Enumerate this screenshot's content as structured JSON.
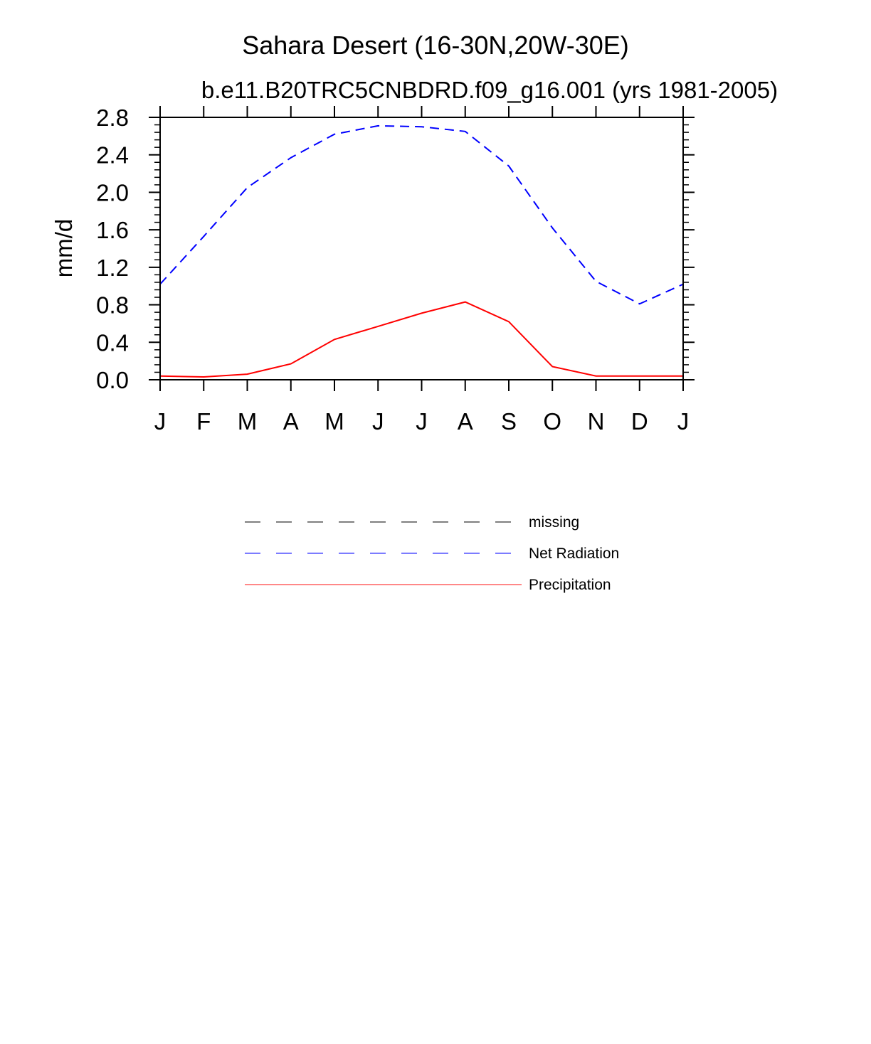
{
  "chart_data": {
    "type": "line",
    "title": "Sahara Desert (16-30N,20W-30E)",
    "subtitle": "b.e11.B20TRC5CNBDRD.f09_g16.001 (yrs 1981-2005)",
    "xlabel": "",
    "ylabel": "mm/d",
    "ylim": [
      0.0,
      2.8
    ],
    "yticks": [
      "0.0",
      "0.4",
      "0.8",
      "1.2",
      "1.6",
      "2.0",
      "2.4",
      "2.8"
    ],
    "categories": [
      "J",
      "F",
      "M",
      "A",
      "M",
      "J",
      "J",
      "A",
      "S",
      "O",
      "N",
      "D",
      "J"
    ],
    "series": [
      {
        "name": "Net Radiation",
        "color": "#0000ff",
        "style": "dashed",
        "values": [
          1.02,
          1.53,
          2.05,
          2.37,
          2.62,
          2.71,
          2.7,
          2.65,
          2.28,
          1.62,
          1.05,
          0.81,
          1.02
        ]
      },
      {
        "name": "Precipitation",
        "color": "#ff0000",
        "style": "solid",
        "values": [
          0.04,
          0.03,
          0.06,
          0.17,
          0.43,
          0.57,
          0.71,
          0.83,
          0.62,
          0.14,
          0.04,
          0.04,
          0.04
        ]
      }
    ],
    "legend": {
      "position": "bottom",
      "entries": [
        {
          "label": "missing",
          "color": "#555555",
          "style": "dashed"
        },
        {
          "label": "Net Radiation",
          "color": "#5050ff",
          "style": "dashed"
        },
        {
          "label": "Precipitation",
          "color": "#ff6060",
          "style": "solid"
        }
      ]
    }
  }
}
